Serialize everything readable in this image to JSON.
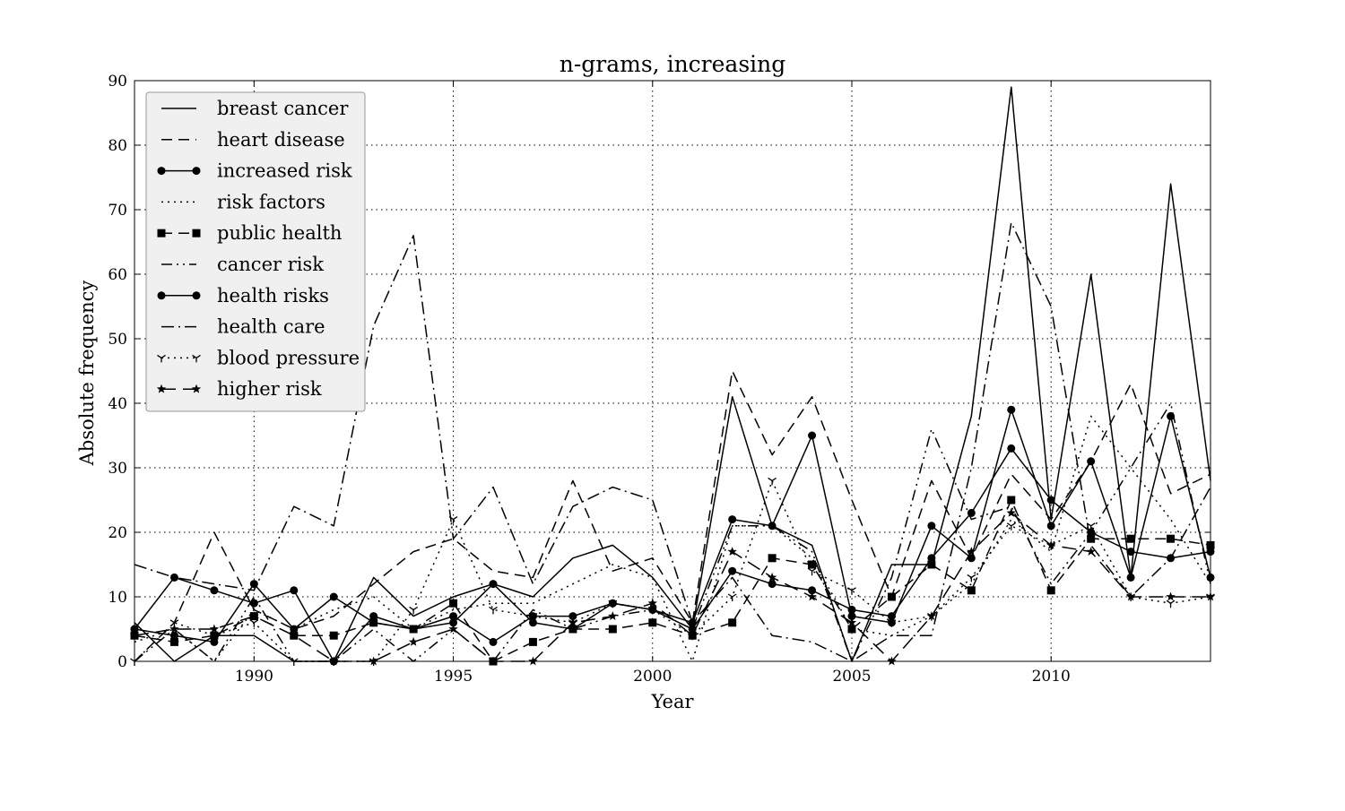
{
  "chart_data": {
    "type": "line",
    "title": "n-grams, increasing",
    "xlabel": "Year",
    "ylabel": "Absolute frequency",
    "xlim": [
      1987,
      2014
    ],
    "ylim": [
      0,
      90
    ],
    "x_ticks": [
      1990,
      1995,
      2000,
      2005,
      2010
    ],
    "y_ticks": [
      0,
      10,
      20,
      30,
      40,
      50,
      60,
      70,
      80,
      90
    ],
    "x_tick_labels": [
      "1990",
      "1995",
      "2000",
      "2005",
      "2010"
    ],
    "y_tick_labels": [
      "0",
      "10",
      "20",
      "30",
      "40",
      "50",
      "60",
      "70",
      "80",
      "90"
    ],
    "grid": true,
    "legend_position": "top-left",
    "x": [
      1987,
      1988,
      1989,
      1990,
      1991,
      1992,
      1993,
      1994,
      1995,
      1996,
      1997,
      1998,
      1999,
      2000,
      2001,
      2002,
      2003,
      2004,
      2005,
      2006,
      2007,
      2008,
      2009,
      2010,
      2011,
      2012,
      2013,
      2014
    ],
    "series": [
      {
        "name": "breast cancer",
        "style": "solid",
        "marker": "none",
        "values": [
          6,
          0,
          4,
          4,
          0,
          0,
          13,
          7,
          10,
          12,
          10,
          16,
          18,
          13,
          5,
          41,
          21,
          18,
          0,
          15,
          15,
          38,
          89,
          22,
          60,
          13,
          74,
          28
        ]
      },
      {
        "name": "heart disease",
        "style": "dashed",
        "marker": "none",
        "values": [
          0,
          6,
          20,
          8,
          5,
          7,
          12,
          17,
          19,
          14,
          13,
          28,
          14,
          16,
          6,
          45,
          32,
          41,
          25,
          10,
          28,
          16,
          29,
          22,
          31,
          43,
          26,
          29
        ]
      },
      {
        "name": "increased risk",
        "style": "solid",
        "marker": "circle",
        "values": [
          5,
          13,
          11,
          9,
          11,
          0,
          7,
          5,
          7,
          3,
          7,
          7,
          9,
          8,
          6,
          22,
          21,
          35,
          7,
          6,
          21,
          16,
          39,
          21,
          31,
          13,
          38,
          13
        ]
      },
      {
        "name": "risk factors",
        "style": "dotted",
        "marker": "none",
        "values": [
          3,
          5,
          0,
          8,
          5,
          8,
          10,
          5,
          8,
          9,
          9,
          12,
          15,
          13,
          0,
          21,
          21,
          16,
          5,
          4,
          7,
          12,
          22,
          17,
          38,
          30,
          22,
          12
        ]
      },
      {
        "name": "public health",
        "style": "dashed",
        "marker": "square",
        "values": [
          4,
          3,
          4,
          7,
          4,
          4,
          6,
          5,
          9,
          0,
          3,
          5,
          5,
          6,
          4,
          6,
          16,
          15,
          5,
          10,
          15,
          11,
          25,
          11,
          19,
          19,
          19,
          18
        ]
      },
      {
        "name": "cancer risk",
        "style": "dashdotdot",
        "marker": "none",
        "values": [
          0,
          5,
          0,
          10,
          0,
          0,
          5,
          0,
          5,
          0,
          8,
          5,
          7,
          8,
          5,
          21,
          21,
          17,
          0,
          13,
          36,
          22,
          24,
          12,
          20,
          30,
          40,
          12
        ]
      },
      {
        "name": "health risks",
        "style": "solid",
        "marker": "circle",
        "values": [
          5,
          4,
          3,
          12,
          5,
          10,
          6,
          5,
          6,
          12,
          6,
          5,
          9,
          8,
          5,
          14,
          12,
          11,
          8,
          7,
          16,
          23,
          33,
          25,
          20,
          17,
          16,
          17
        ]
      },
      {
        "name": "health care",
        "style": "dashdot",
        "marker": "none",
        "values": [
          15,
          13,
          12,
          11,
          24,
          21,
          52,
          66,
          19,
          27,
          12,
          24,
          27,
          25,
          6,
          13,
          4,
          3,
          0,
          4,
          4,
          30,
          68,
          55,
          18,
          10,
          16,
          27
        ]
      },
      {
        "name": "blood pressure",
        "style": "dotted",
        "marker": "tri",
        "values": [
          0,
          6,
          4,
          6,
          0,
          0,
          0,
          8,
          22,
          8,
          7,
          6,
          9,
          8,
          4,
          10,
          28,
          14,
          11,
          6,
          7,
          13,
          21,
          18,
          21,
          10,
          9,
          10
        ]
      },
      {
        "name": "higher risk",
        "style": "longdash",
        "marker": "star",
        "values": [
          4,
          5,
          5,
          7,
          4,
          0,
          0,
          3,
          5,
          0,
          0,
          6,
          7,
          9,
          4,
          17,
          13,
          10,
          6,
          0,
          7,
          17,
          23,
          18,
          17,
          10,
          10,
          10
        ]
      }
    ]
  }
}
